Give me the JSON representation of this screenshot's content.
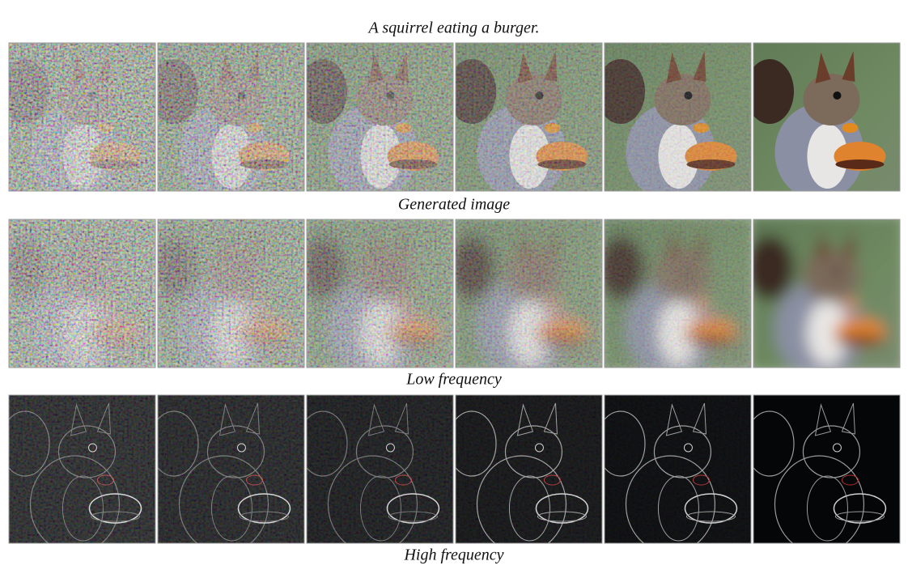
{
  "title": "A squirrel eating a burger.",
  "rows": [
    {
      "caption": "Generated image"
    },
    {
      "caption": "Low frequency"
    },
    {
      "caption": "High frequency"
    }
  ]
}
